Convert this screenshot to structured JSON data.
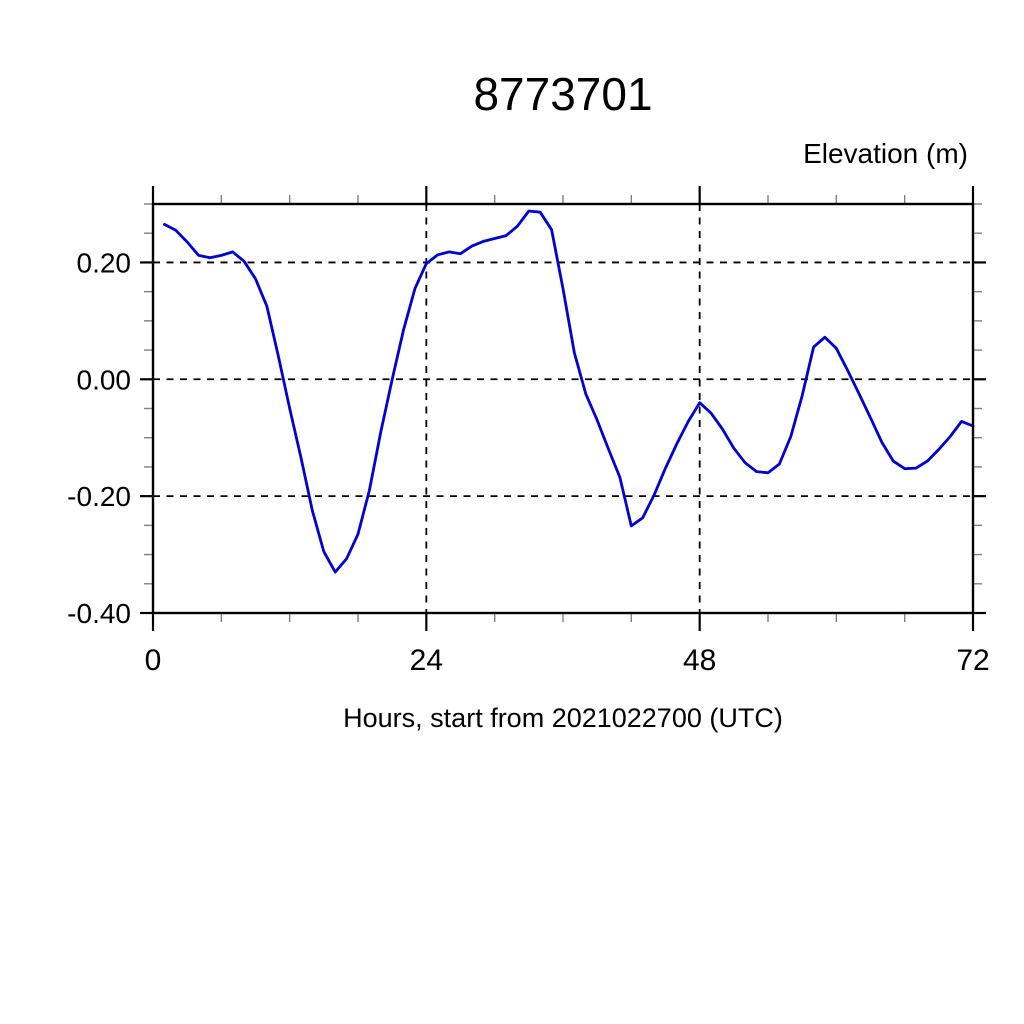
{
  "figure": {
    "title": "8773701",
    "ylabel": "Elevation (m)",
    "xlabel": "Hours, start from 2021022700 (UTC)"
  },
  "chart_data": {
    "type": "line",
    "title": "8773701",
    "xlabel": "Hours, start from 2021022700 (UTC)",
    "ylabel": "Elevation (m)",
    "xlim": [
      0,
      72
    ],
    "ylim": [
      -0.4,
      0.3
    ],
    "xticks_major": [
      0,
      24,
      48,
      72
    ],
    "xtick_labels": [
      "0",
      "24",
      "48",
      "72"
    ],
    "xtick_minor_step": 6,
    "yticks_major": [
      0.2,
      0.0,
      -0.2,
      -0.4
    ],
    "ytick_labels": [
      "0.20",
      "0.00",
      "-0.20",
      "-0.40"
    ],
    "ytick_minor_step": 0.05,
    "grid": {
      "style": "dashed",
      "x_at": [
        24,
        48,
        72
      ],
      "y_at": [
        0.2,
        0.0,
        -0.2,
        -0.4
      ]
    },
    "legend": "none",
    "line_color": "#0000d8",
    "minor_tick_color": "#808080",
    "series": [
      {
        "name": "elevation",
        "x": [
          1,
          2,
          3,
          4,
          5,
          6,
          7,
          8,
          9,
          10,
          11,
          12,
          13,
          14,
          15,
          16,
          17,
          18,
          19,
          20,
          21,
          22,
          23,
          24,
          25,
          26,
          27,
          28,
          29,
          30,
          31,
          32,
          33,
          34,
          35,
          36,
          37,
          38,
          39,
          40,
          41,
          42,
          43,
          44,
          45,
          46,
          47,
          48,
          49,
          50,
          51,
          52,
          53,
          54,
          55,
          56,
          57,
          58,
          59,
          60,
          61,
          62,
          63,
          64,
          65,
          66,
          67,
          68,
          69,
          70,
          71,
          72
        ],
        "y": [
          0.265,
          0.255,
          0.235,
          0.212,
          0.208,
          0.212,
          0.218,
          0.202,
          0.172,
          0.125,
          0.04,
          -0.05,
          -0.135,
          -0.225,
          -0.295,
          -0.33,
          -0.307,
          -0.265,
          -0.19,
          -0.09,
          0.0,
          0.085,
          0.155,
          0.198,
          0.213,
          0.218,
          0.215,
          0.228,
          0.236,
          0.241,
          0.246,
          0.262,
          0.288,
          0.286,
          0.256,
          0.155,
          0.045,
          -0.025,
          -0.07,
          -0.12,
          -0.168,
          -0.251,
          -0.237,
          -0.198,
          -0.152,
          -0.11,
          -0.072,
          -0.04,
          -0.058,
          -0.085,
          -0.118,
          -0.143,
          -0.158,
          -0.16,
          -0.145,
          -0.098,
          -0.028,
          0.055,
          0.072,
          0.053,
          0.015,
          -0.025,
          -0.066,
          -0.108,
          -0.14,
          -0.153,
          -0.152,
          -0.14,
          -0.12,
          -0.098,
          -0.072,
          -0.08
        ]
      }
    ]
  }
}
